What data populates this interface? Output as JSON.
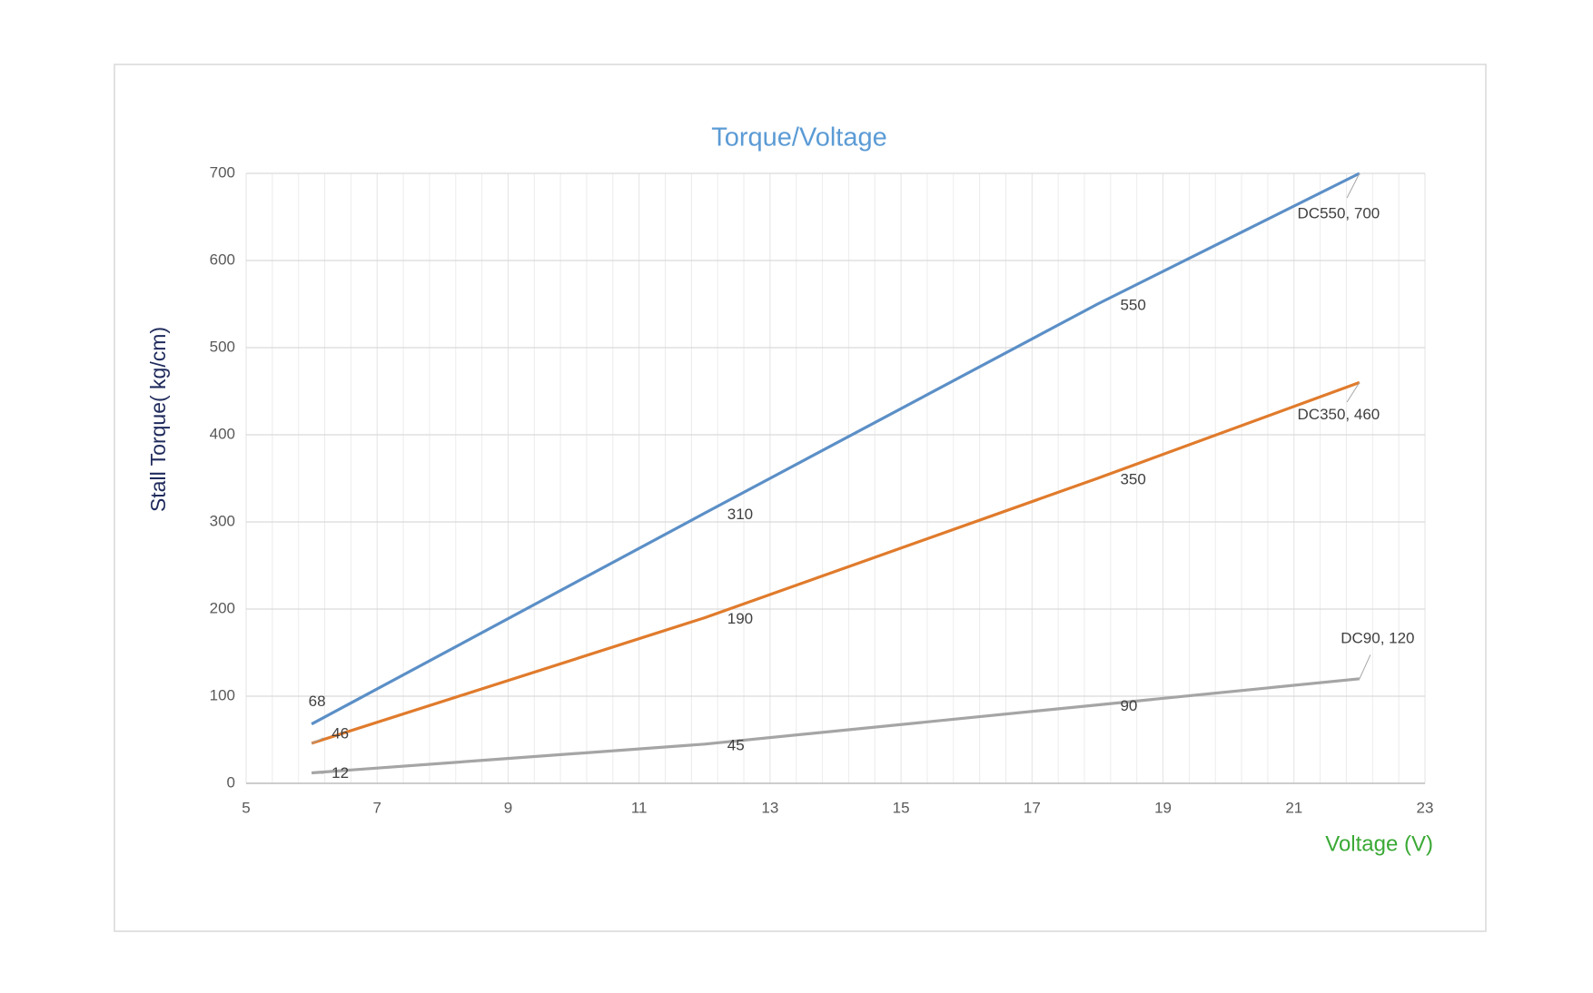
{
  "chart_data": {
    "type": "line",
    "title": "Torque/Voltage",
    "x_label": "Voltage (V)",
    "y_label": "Stall  Torque( kg/cm)",
    "x": [
      6,
      12,
      18,
      22
    ],
    "series": [
      {
        "color": "#5b8fc7",
        "values": [
          68,
          310,
          550,
          700
        ],
        "value_labels": [
          "68",
          "310",
          "550",
          "DC550, 700"
        ]
      },
      {
        "color": "#e07b2c",
        "values": [
          46,
          190,
          350,
          460
        ],
        "value_labels": [
          "46",
          "190",
          "350",
          "DC350, 460"
        ]
      },
      {
        "color": "#a5a5a5",
        "values": [
          12,
          45,
          90,
          120
        ],
        "value_labels": [
          "12",
          "45",
          "90",
          "DC90, 120"
        ]
      }
    ],
    "xlim": [
      5,
      23
    ],
    "xticks": [
      5,
      7,
      9,
      11,
      13,
      15,
      17,
      19,
      21,
      23
    ],
    "ylim": [
      0,
      700
    ],
    "yticks": [
      0,
      100,
      200,
      300,
      400,
      500,
      600,
      700
    ],
    "grid": true
  }
}
